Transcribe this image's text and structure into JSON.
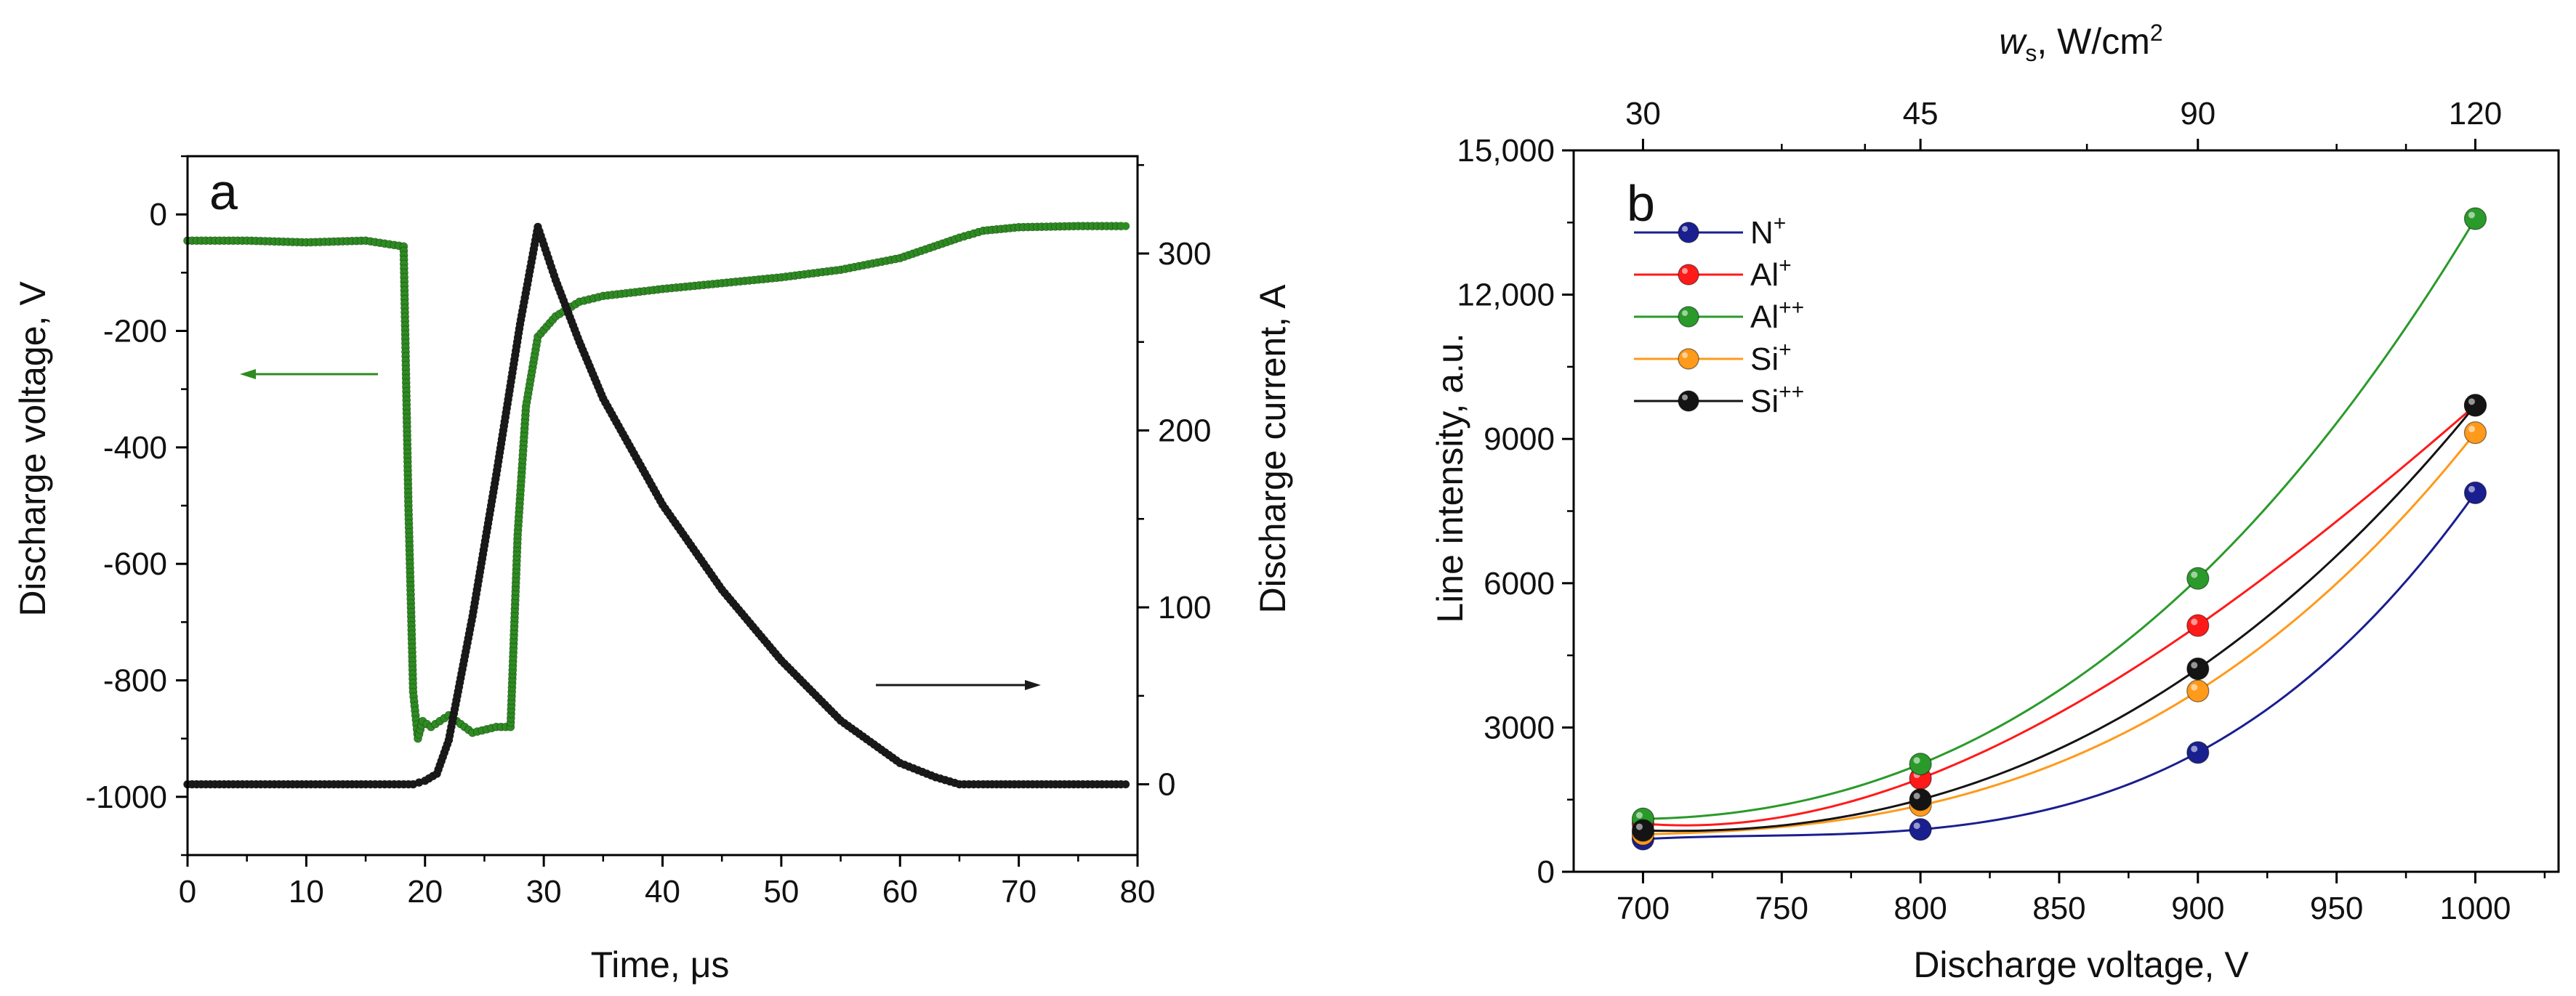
{
  "chart_data": [
    {
      "panel": "a",
      "type": "line",
      "xlabel_main": "Time, ",
      "xlabel_unit": "μs",
      "ylabel_left": "Discharge voltage, V",
      "ylabel_right": "Discharge current, A",
      "xlim": [
        0,
        80
      ],
      "ylim_left": [
        -1100,
        100
      ],
      "ylim_right": [
        -40,
        355
      ],
      "x_ticks": [
        0,
        10,
        20,
        30,
        40,
        50,
        60,
        70,
        80
      ],
      "y_left_ticks": [
        "-1000",
        "-800",
        "-600",
        "-400",
        "-200",
        "0"
      ],
      "y_left_tick_values": [
        -1000,
        -800,
        -600,
        -400,
        -200,
        0
      ],
      "y_right_ticks": [
        "0",
        "100",
        "200",
        "300"
      ],
      "y_right_tick_values": [
        0,
        100,
        200,
        300
      ],
      "colors": {
        "voltage": "#2e8b22",
        "current": "#1a1a1a"
      },
      "series": [
        {
          "axis": "left",
          "x": [
            0,
            5,
            10,
            15,
            18.2,
            18.6,
            19.0,
            19.4,
            19.8,
            20.5,
            22,
            24,
            26,
            27.2,
            27.8,
            28.5,
            29.5,
            31,
            33,
            35,
            40,
            45,
            50,
            55,
            60,
            65,
            67,
            70,
            75,
            79
          ],
          "y": [
            -45,
            -45,
            -48,
            -45,
            -55,
            -500,
            -820,
            -900,
            -870,
            -880,
            -860,
            -890,
            -880,
            -880,
            -550,
            -330,
            -210,
            -175,
            -150,
            -140,
            -128,
            -118,
            -108,
            -95,
            -75,
            -40,
            -28,
            -22,
            -20,
            -20
          ]
        },
        {
          "axis": "right",
          "x": [
            0,
            5,
            10,
            15,
            19,
            20,
            21,
            22,
            24,
            26,
            28,
            29.5,
            31,
            33,
            35,
            40,
            45,
            50,
            55,
            60,
            63,
            65,
            67,
            70,
            75,
            79
          ],
          "y": [
            0,
            0,
            0,
            0,
            0,
            2,
            6,
            25,
            95,
            175,
            260,
            315,
            285,
            250,
            218,
            158,
            110,
            70,
            36,
            12,
            4,
            0,
            0,
            0,
            0,
            0
          ]
        }
      ],
      "arrows": [
        {
          "direction": "left",
          "target_axis": "left"
        },
        {
          "direction": "right",
          "target_axis": "right"
        }
      ]
    },
    {
      "panel": "b",
      "type": "line",
      "xlabel": "Discharge voltage, V",
      "ylabel": "Line intensity, a.u.",
      "top_xlabel_sym": "w",
      "top_xlabel_sub": "s",
      "top_xlabel_rest": ", W/cm",
      "top_xlabel_sup": "2",
      "xlim": [
        675,
        1030
      ],
      "ylim": [
        0,
        15000
      ],
      "x_ticks": [
        700,
        750,
        800,
        850,
        900,
        950,
        1000
      ],
      "y_ticks": [
        "0",
        "3000",
        "6000",
        "9000",
        "12,000",
        "15,000"
      ],
      "y_tick_values": [
        0,
        3000,
        6000,
        9000,
        12000,
        15000
      ],
      "top_ticks": [
        {
          "label": "30",
          "at": 700
        },
        {
          "label": "45",
          "at": 800
        },
        {
          "label": "90",
          "at": 900
        },
        {
          "label": "120",
          "at": 1000
        }
      ],
      "legend_position": "top-left",
      "categories": [
        700,
        800,
        900,
        1000
      ],
      "series": [
        {
          "name_base": "N",
          "name_sup": "+",
          "color": "#1a1f8f",
          "values": [
            680,
            880,
            2480,
            7880
          ]
        },
        {
          "name_base": "Al",
          "name_sup": "+",
          "color": "#ff1a1a",
          "values": [
            1000,
            1940,
            5120,
            9700
          ]
        },
        {
          "name_base": "Al",
          "name_sup": "++",
          "color": "#2a9a2a",
          "values": [
            1100,
            2240,
            6100,
            13580
          ]
        },
        {
          "name_base": "Si",
          "name_sup": "+",
          "color": "#ff9a1a",
          "values": [
            780,
            1380,
            3760,
            9130
          ]
        },
        {
          "name_base": "Si",
          "name_sup": "++",
          "color": "#141414",
          "values": [
            860,
            1500,
            4220,
            9700
          ]
        }
      ]
    }
  ]
}
